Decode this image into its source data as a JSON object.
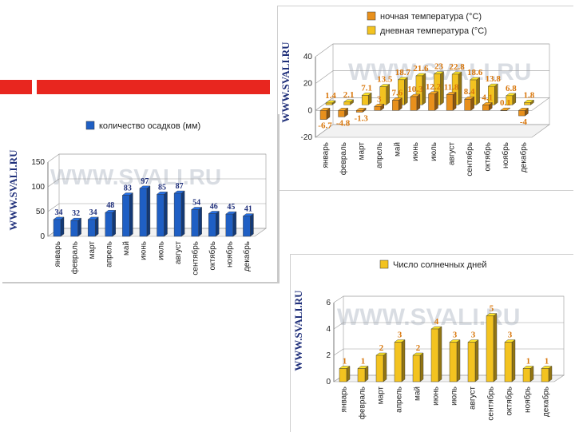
{
  "watermark": "WWW.SVALI.RU",
  "side_label": "WWW.SVALI.RU",
  "colors": {
    "accent_red": "#e8261f",
    "blue": "#1f5fc4",
    "orange": "#e8901c",
    "yellow": "#f3c320",
    "label_orange": "#d9770c",
    "label_blue": "#1f2f7a"
  },
  "chart_data": [
    {
      "id": "temperature",
      "type": "bar",
      "categories": [
        "январь",
        "февраль",
        "март",
        "апрель",
        "май",
        "июнь",
        "июль",
        "август",
        "сентябрь",
        "октябрь",
        "ноябрь",
        "декабрь"
      ],
      "series": [
        {
          "name": "ночная температура (°C)",
          "values": [
            -6.7,
            -4.8,
            -1.3,
            3,
            7.6,
            10.3,
            12.2,
            11.8,
            8.4,
            4.1,
            0.1,
            -4
          ],
          "labels": [
            "-6.7",
            "-4.8",
            "-1.3",
            "3",
            "7.6",
            "10.3",
            "12.2",
            "11.8",
            "8.4",
            "4.1",
            "0.1",
            "-4"
          ]
        },
        {
          "name": "дневная температура (°C)",
          "values": [
            1.4,
            2.1,
            7.1,
            13.5,
            18.7,
            21.6,
            23,
            22.8,
            18.6,
            13.8,
            6.8,
            1.8
          ],
          "labels": [
            "1.4",
            "2.1",
            "7.1",
            "13.5",
            "18.7",
            "21.6",
            "23",
            "22.8",
            "18.6",
            "13.8",
            "6.8",
            "1.8"
          ]
        }
      ],
      "ylim": [
        -20,
        40
      ],
      "yticks": [
        "40",
        "20",
        "0",
        "-20"
      ],
      "legend": "top"
    },
    {
      "id": "precipitation",
      "type": "bar",
      "categories": [
        "январь",
        "февраль",
        "март",
        "апрель",
        "май",
        "июнь",
        "июль",
        "август",
        "сентябрь",
        "октябрь",
        "ноябрь",
        "декабрь"
      ],
      "series": [
        {
          "name": "количество осадков (мм)",
          "values": [
            34,
            32,
            34,
            48,
            83,
            97,
            85,
            87,
            54,
            46,
            45,
            41
          ],
          "labels": [
            "34",
            "32",
            "34",
            "48",
            "83",
            "97",
            "85",
            "87",
            "54",
            "46",
            "45",
            "41"
          ]
        }
      ],
      "ylim": [
        0,
        150
      ],
      "yticks": [
        "150",
        "100",
        "50",
        "0"
      ],
      "legend": "top"
    },
    {
      "id": "sunny",
      "type": "bar",
      "categories": [
        "январь",
        "февраль",
        "март",
        "апрель",
        "май",
        "июнь",
        "июль",
        "август",
        "сентябрь",
        "октябрь",
        "ноябрь",
        "декабрь"
      ],
      "series": [
        {
          "name": "Число солнечных дней",
          "values": [
            1,
            1,
            2,
            3,
            2,
            4,
            3,
            3,
            5,
            3,
            1,
            1
          ],
          "labels": [
            "1",
            "1",
            "2",
            "3",
            "2",
            "4",
            "3",
            "3",
            "5",
            "3",
            "1",
            "1"
          ]
        }
      ],
      "ylim": [
        0,
        6
      ],
      "yticks": [
        "6",
        "4",
        "2",
        "0"
      ],
      "legend": "top"
    }
  ]
}
